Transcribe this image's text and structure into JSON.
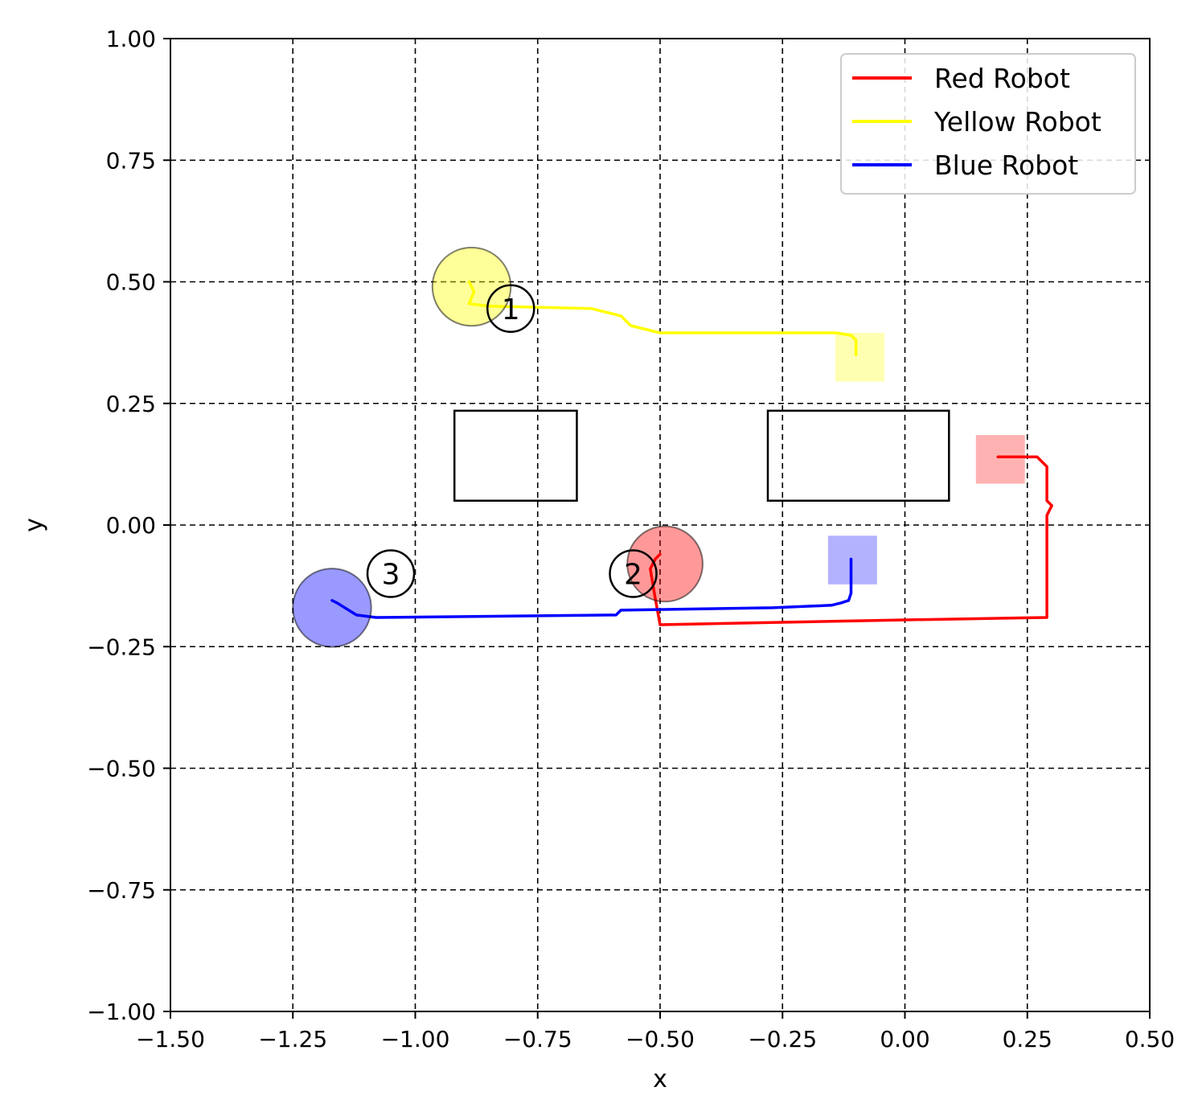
{
  "chart_data": {
    "type": "line",
    "xlabel": "x",
    "ylabel": "y",
    "xlim": [
      -1.5,
      0.5
    ],
    "ylim": [
      -1.0,
      1.0
    ],
    "x_ticks": [
      -1.5,
      -1.25,
      -1.0,
      -0.75,
      -0.5,
      -0.25,
      0.0,
      0.25,
      0.5
    ],
    "y_ticks": [
      -1.0,
      -0.75,
      -0.5,
      -0.25,
      0.0,
      0.25,
      0.5,
      0.75,
      1.0
    ],
    "x_tick_labels": [
      "−1.50",
      "−1.25",
      "−1.00",
      "−0.75",
      "−0.50",
      "−0.25",
      "0.00",
      "0.25",
      "0.50"
    ],
    "y_tick_labels": [
      "−1.00",
      "−0.75",
      "−0.50",
      "−0.25",
      "0.00",
      "0.25",
      "0.50",
      "0.75",
      "1.00"
    ],
    "grid": true,
    "legend_position": "top-right",
    "series": [
      {
        "name": "Red Robot",
        "color": "#ff0000",
        "x": [
          0.19,
          0.27,
          0.29,
          0.29,
          0.3,
          0.29,
          0.29,
          0.29,
          0.29,
          0.0,
          -0.5,
          -0.51,
          -0.52,
          -0.51,
          -0.5
        ],
        "y": [
          0.14,
          0.14,
          0.12,
          0.05,
          0.04,
          0.02,
          -0.1,
          -0.185,
          -0.19,
          -0.195,
          -0.205,
          -0.15,
          -0.09,
          -0.07,
          -0.06
        ]
      },
      {
        "name": "Yellow Robot",
        "color": "#ffff00",
        "x": [
          -0.1,
          -0.1,
          -0.11,
          -0.14,
          -0.5,
          -0.56,
          -0.58,
          -0.64,
          -0.85,
          -0.89,
          -0.88,
          -0.89
        ],
        "y": [
          0.35,
          0.38,
          0.39,
          0.395,
          0.395,
          0.41,
          0.43,
          0.445,
          0.45,
          0.455,
          0.48,
          0.5
        ]
      },
      {
        "name": "Blue Robot",
        "color": "#0000ff",
        "x": [
          -0.11,
          -0.11,
          -0.115,
          -0.13,
          -0.15,
          -0.27,
          -0.58,
          -0.59,
          -1.08,
          -1.12,
          -1.16,
          -1.17
        ],
        "y": [
          -0.07,
          -0.14,
          -0.155,
          -0.16,
          -0.165,
          -0.17,
          -0.175,
          -0.185,
          -0.19,
          -0.185,
          -0.16,
          -0.155
        ]
      }
    ],
    "obstacles": [
      {
        "x0": -0.92,
        "x1": -0.67,
        "y0": 0.05,
        "y1": 0.235
      },
      {
        "x0": -0.28,
        "x1": 0.09,
        "y0": 0.05,
        "y1": 0.235
      }
    ],
    "goals": [
      {
        "color": "#ff0000",
        "cx": 0.195,
        "cy": 0.135,
        "size": 0.1
      },
      {
        "color": "#ffff00",
        "cx": -0.092,
        "cy": 0.345,
        "size": 0.1
      },
      {
        "color": "#0000ff",
        "cx": -0.107,
        "cy": -0.072,
        "size": 0.1
      }
    ],
    "robots": [
      {
        "color": "#ffff00",
        "cx": -0.885,
        "cy": 0.49,
        "r": 0.08
      },
      {
        "color": "#ff0000",
        "cx": -0.49,
        "cy": -0.08,
        "r": 0.077
      },
      {
        "color": "#0000ff",
        "cx": -1.17,
        "cy": -0.17,
        "r": 0.08
      }
    ],
    "annotations": [
      {
        "text": "1",
        "x": -0.805,
        "y": 0.445
      },
      {
        "text": "2",
        "x": -0.555,
        "y": -0.1
      },
      {
        "text": "3",
        "x": -1.05,
        "y": -0.1
      }
    ]
  }
}
